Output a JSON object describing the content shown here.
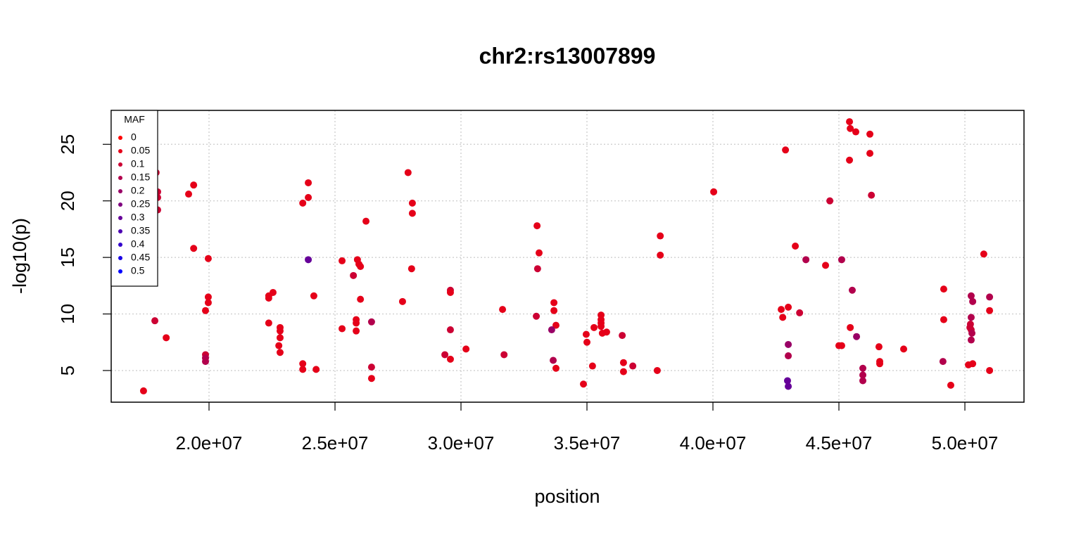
{
  "chart_data": {
    "type": "scatter",
    "title": "chr2:rs13007899",
    "x_label": "position",
    "y_label": "-log10(p)",
    "xlim": [
      16117000,
      52346000
    ],
    "ylim": [
      2.2,
      28.0
    ],
    "xticks": [
      {
        "value": 20000000,
        "label": "2.0e+07"
      },
      {
        "value": 25000000,
        "label": "2.5e+07"
      },
      {
        "value": 30000000,
        "label": "3.0e+07"
      },
      {
        "value": 35000000,
        "label": "3.5e+07"
      },
      {
        "value": 40000000,
        "label": "4.0e+07"
      },
      {
        "value": 45000000,
        "label": "4.5e+07"
      },
      {
        "value": 50000000,
        "label": "5.0e+07"
      }
    ],
    "yticks": [
      5,
      10,
      15,
      20,
      25
    ],
    "grid": true,
    "x": [
      17400000,
      17900000,
      17960000,
      17960000,
      17960000,
      17850000,
      18300000,
      19190000,
      19390000,
      19390000,
      19970000,
      19970000,
      19970000,
      19860000,
      19860000,
      19860000,
      19860000,
      22370000,
      22370000,
      22540000,
      22370000,
      22820000,
      22820000,
      22820000,
      22770000,
      22820000,
      23720000,
      23940000,
      23940000,
      23940000,
      24160000,
      23720000,
      23720000,
      24250000,
      25280000,
      25280000,
      25890000,
      25950000,
      26010000,
      25840000,
      25840000,
      25840000,
      25730000,
      26010000,
      26230000,
      26450000,
      26450000,
      26450000,
      27680000,
      27900000,
      28070000,
      28070000,
      28040000,
      29580000,
      29580000,
      29580000,
      29360000,
      29580000,
      30200000,
      31650000,
      31710000,
      32990000,
      33020000,
      33100000,
      33040000,
      33690000,
      33690000,
      33770000,
      33600000,
      33660000,
      33770000,
      34860000,
      34970000,
      35000000,
      35220000,
      35280000,
      35560000,
      35560000,
      35560000,
      35560000,
      35610000,
      35780000,
      36400000,
      36450000,
      36450000,
      36820000,
      37790000,
      37910000,
      37910000,
      40030000,
      42880000,
      42710000,
      42770000,
      42990000,
      42990000,
      42990000,
      42960000,
      42990000,
      43270000,
      43440000,
      43690000,
      44470000,
      44640000,
      45110000,
      45000000,
      45110000,
      45420000,
      45450000,
      45670000,
      45420000,
      45530000,
      45450000,
      45700000,
      46230000,
      46230000,
      46290000,
      45950000,
      45950000,
      45950000,
      46590000,
      46620000,
      46620000,
      47570000,
      49160000,
      49160000,
      49440000,
      49130000,
      50750000,
      50200000,
      50220000,
      50250000,
      50280000,
      50250000,
      50250000,
      50250000,
      50310000,
      50140000,
      50310000,
      50980000,
      50980000,
      50980000
    ],
    "values": [
      3.2,
      22.5,
      20.8,
      20.3,
      19.2,
      9.4,
      7.9,
      20.6,
      21.4,
      15.8,
      14.9,
      11.5,
      11.0,
      10.3,
      6.4,
      6.1,
      5.8,
      11.6,
      11.4,
      11.9,
      9.2,
      8.8,
      8.5,
      7.9,
      7.2,
      6.6,
      19.8,
      21.6,
      20.3,
      14.8,
      11.6,
      5.6,
      5.1,
      5.1,
      14.7,
      8.7,
      14.8,
      14.4,
      14.2,
      9.5,
      9.2,
      8.5,
      13.4,
      11.3,
      18.2,
      9.3,
      5.3,
      4.3,
      11.1,
      22.5,
      19.8,
      18.9,
      14.0,
      12.1,
      11.9,
      8.6,
      6.4,
      6.0,
      6.9,
      10.4,
      6.4,
      9.8,
      17.8,
      15.4,
      14.0,
      11.0,
      10.3,
      9.0,
      8.6,
      5.9,
      5.2,
      3.8,
      8.2,
      7.5,
      5.4,
      8.8,
      9.9,
      9.5,
      9.2,
      8.9,
      8.3,
      8.4,
      8.1,
      5.7,
      4.9,
      5.4,
      5.0,
      16.9,
      15.2,
      20.8,
      24.5,
      10.4,
      9.7,
      10.6,
      7.3,
      6.3,
      4.1,
      3.6,
      16.0,
      10.1,
      14.8,
      14.3,
      20.0,
      14.8,
      7.2,
      7.2,
      27.0,
      26.4,
      26.1,
      23.6,
      12.1,
      8.8,
      8.0,
      25.9,
      24.2,
      20.5,
      5.2,
      4.6,
      4.1,
      7.1,
      5.8,
      5.6,
      6.9,
      12.2,
      9.5,
      3.7,
      5.8,
      15.3,
      8.8,
      9.1,
      8.6,
      8.3,
      7.7,
      9.7,
      11.6,
      11.1,
      5.5,
      5.6,
      11.5,
      10.3,
      5.0
    ],
    "point_colors": [
      "#E50019",
      "#CC0033",
      "#CC0033",
      "#CC0033",
      "#CC0033",
      "#CC0033",
      "#E50019",
      "#E50019",
      "#E50019",
      "#E50019",
      "#E50019",
      "#E50019",
      "#E50019",
      "#E50019",
      "#CC0033",
      "#B2004C",
      "#B2004C",
      "#E50019",
      "#E50019",
      "#E50019",
      "#E50019",
      "#E50019",
      "#E50019",
      "#E50019",
      "#E50019",
      "#E50019",
      "#E50019",
      "#E50019",
      "#E50019",
      "#660099",
      "#E50019",
      "#E50019",
      "#E50019",
      "#E50019",
      "#E50019",
      "#E50019",
      "#E50019",
      "#E50019",
      "#E50019",
      "#E50019",
      "#E50019",
      "#E50019",
      "#CC0033",
      "#E50019",
      "#E50019",
      "#B2004C",
      "#CC0033",
      "#E50019",
      "#E50019",
      "#E50019",
      "#E50019",
      "#E50019",
      "#E50019",
      "#CC0033",
      "#E50019",
      "#CC0033",
      "#CC0033",
      "#E50019",
      "#E50019",
      "#E50019",
      "#CC0033",
      "#CC0033",
      "#E50019",
      "#E50019",
      "#CC0033",
      "#E50019",
      "#E50019",
      "#E50019",
      "#990066",
      "#B2004C",
      "#E50019",
      "#E50019",
      "#E50019",
      "#E50019",
      "#E50019",
      "#E50019",
      "#E50019",
      "#E50019",
      "#E50019",
      "#E50019",
      "#E50019",
      "#E50019",
      "#CC0033",
      "#E50019",
      "#E50019",
      "#CC0033",
      "#E50019",
      "#E50019",
      "#E50019",
      "#E50019",
      "#E50019",
      "#E50019",
      "#E50019",
      "#E50019",
      "#990066",
      "#B2004C",
      "#660099",
      "#660099",
      "#E50019",
      "#CC0033",
      "#B2004C",
      "#E50019",
      "#CC0033",
      "#B2004C",
      "#E50019",
      "#E50019",
      "#E50019",
      "#E50019",
      "#E50019",
      "#E50019",
      "#B2004C",
      "#E50019",
      "#990066",
      "#E50019",
      "#E50019",
      "#CC0033",
      "#B2004C",
      "#B2004C",
      "#B2004C",
      "#E50019",
      "#E50019",
      "#E50019",
      "#E50019",
      "#E50019",
      "#E50019",
      "#E50019",
      "#B2004C",
      "#E50019",
      "#CC0033",
      "#CC0033",
      "#CC0033",
      "#B2004C",
      "#B2004C",
      "#B2004C",
      "#B2004C",
      "#B2004C",
      "#E50019",
      "#E50019",
      "#B2004C",
      "#E50019",
      "#E50019"
    ],
    "legend": {
      "title": "MAF",
      "labels": [
        "0",
        "0.05",
        "0.1",
        "0.15",
        "0.2",
        "0.25",
        "0.3",
        "0.35",
        "0.4",
        "0.45",
        "0.5"
      ],
      "colors": [
        "#FF0000",
        "#E50019",
        "#CC0033",
        "#B2004C",
        "#990066",
        "#7F007F",
        "#660099",
        "#4C00B2",
        "#3300CC",
        "#1900E5",
        "#0000FF"
      ],
      "position": "top-left"
    }
  }
}
